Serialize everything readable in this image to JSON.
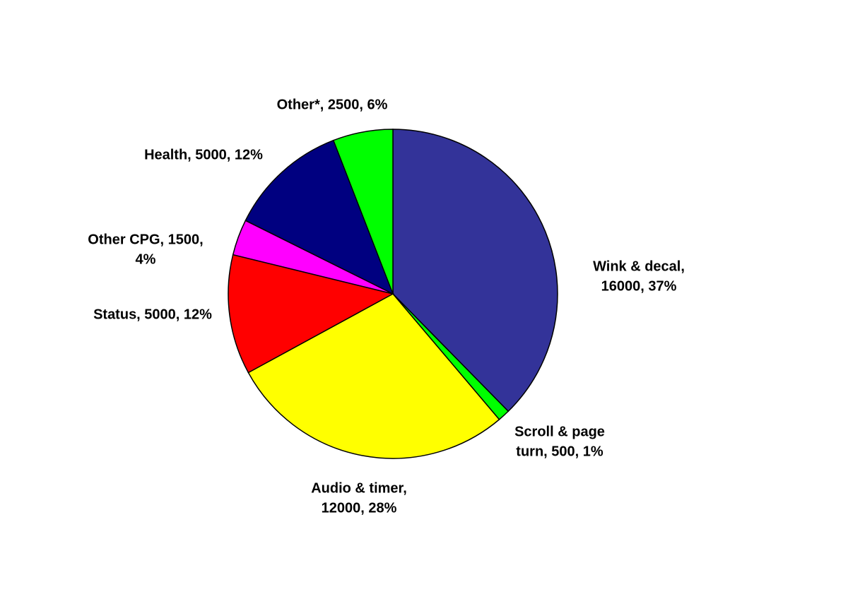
{
  "chart_data": {
    "type": "pie",
    "values": [
      16000,
      500,
      12000,
      5000,
      1500,
      5000,
      2500
    ],
    "value_labels": [
      [
        "Wink & decal,",
        "16000, 37%"
      ],
      [
        "Scroll & page",
        "turn, 500, 1%"
      ],
      [
        "Audio & timer,",
        "12000, 28%"
      ],
      [
        "Status, 5000, 12%"
      ],
      [
        "Other CPG, 1500,",
        "4%"
      ],
      [
        "Health, 5000, 12%"
      ],
      [
        "Other*, 2500, 6%"
      ]
    ],
    "colors": [
      "#333399",
      "#00ff00",
      "#ffff00",
      "#ff0000",
      "#ff00ff",
      "#000080",
      "#00ff00"
    ]
  }
}
